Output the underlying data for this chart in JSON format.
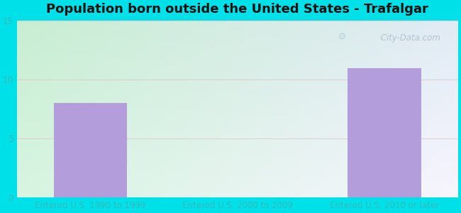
{
  "title": "Population born outside the United States - Trafalgar",
  "categories": [
    "Entered U.S. 1990 to 1999",
    "Entered U.S. 2000 to 2009",
    "Entered U.S. 2010 or later"
  ],
  "values": [
    8,
    0,
    11
  ],
  "bar_color": "#b39ddb",
  "bar_width": 0.5,
  "ylim": [
    0,
    15
  ],
  "yticks": [
    0,
    5,
    10,
    15
  ],
  "background_outer": "#00e0e8",
  "background_top_left": "#c8eeda",
  "background_bottom_right": "#f0eef8",
  "grid_color": "#ddcccc",
  "title_fontsize": 13,
  "tick_fontsize": 8.5,
  "tick_color": "#33bbbb",
  "watermark_text": " City-Data.com",
  "watermark_color": "#aabbcc"
}
